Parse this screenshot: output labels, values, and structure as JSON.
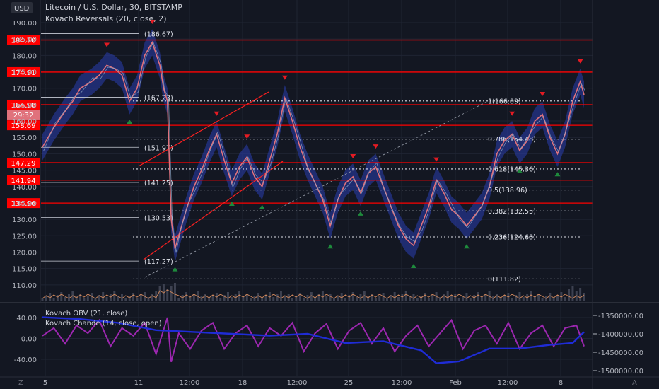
{
  "header": {
    "currency": "USD",
    "title": "Litecoin / U.S. Dollar, 30, BITSTAMP",
    "indicator": "Kovach Reversals (20, close, 2)"
  },
  "lower_pane": {
    "label1": "Kovach OBV (21, close)",
    "label2": "Kovach Chande (14, close, open)"
  },
  "footer": {
    "left_icon": "Z",
    "right_icon": "A"
  },
  "colors": {
    "background": "#131722",
    "grid": "#1f2433",
    "axis_text": "#b2b5be",
    "level_red": "#ff0000",
    "price_line": "#e0727c",
    "band": "#2a3eb1",
    "marker_up": "#1e8a3c",
    "marker_down": "#e31b23",
    "obv": "#1f2cd6",
    "chande": "#9c27b0",
    "volume": "#c9845b"
  },
  "chart_data": [
    {
      "type": "line",
      "pane": "price",
      "ylim": [
        105,
        192
      ],
      "y_ticks": [
        110,
        115,
        120,
        125,
        130,
        135,
        140,
        145,
        150,
        155,
        160,
        165,
        170,
        175,
        180,
        185,
        190
      ],
      "x_ticks": [
        "5",
        "11",
        "12:00",
        "18",
        "12:00",
        "25",
        "12:00",
        "Feb",
        "12:00",
        "8"
      ],
      "red_levels": [
        {
          "value": 184.7,
          "label": "184.70"
        },
        {
          "value": 174.91,
          "label": "174.91"
        },
        {
          "value": 164.98,
          "label": "164.98"
        },
        {
          "value": 158.69,
          "label": "158.69"
        },
        {
          "value": 147.29,
          "label": "147.29"
        },
        {
          "value": 141.94,
          "label": "141.94"
        },
        {
          "value": 134.96,
          "label": "134.96"
        }
      ],
      "countdown": "29:32",
      "swing_labels": [
        {
          "value": 186.67,
          "label": "(186.67)"
        },
        {
          "value": 167.23,
          "label": "(167.23)"
        },
        {
          "value": 151.97,
          "label": "(151.97)"
        },
        {
          "value": 141.25,
          "label": "(141.25)"
        },
        {
          "value": 130.53,
          "label": "(130.53)"
        },
        {
          "value": 117.27,
          "label": "(117.27)"
        }
      ],
      "fib_levels": [
        {
          "value": 166.09,
          "label": "1(166.09)"
        },
        {
          "value": 154.48,
          "label": "0.786(154.48)"
        },
        {
          "value": 145.36,
          "label": "0.618(145.36)"
        },
        {
          "value": 138.96,
          "label": "0.5(138.96)"
        },
        {
          "value": 132.55,
          "label": "0.382(132.55)"
        },
        {
          "value": 124.63,
          "label": "0.236(124.63)"
        },
        {
          "value": 111.82,
          "label": "0(111.82)"
        }
      ],
      "price_path": [
        [
          0,
          152
        ],
        [
          3,
          158
        ],
        [
          6,
          163
        ],
        [
          8,
          166
        ],
        [
          10,
          170
        ],
        [
          13,
          172
        ],
        [
          15,
          174
        ],
        [
          17,
          177
        ],
        [
          19,
          176
        ],
        [
          21,
          174
        ],
        [
          23,
          166
        ],
        [
          25,
          170
        ],
        [
          27,
          180
        ],
        [
          29,
          184
        ],
        [
          31,
          177
        ],
        [
          32,
          170
        ],
        [
          33,
          166
        ],
        [
          34,
          130
        ],
        [
          35,
          121
        ],
        [
          36,
          125
        ],
        [
          38,
          133
        ],
        [
          40,
          140
        ],
        [
          42,
          145
        ],
        [
          44,
          151
        ],
        [
          46,
          156
        ],
        [
          48,
          148
        ],
        [
          50,
          141
        ],
        [
          52,
          146
        ],
        [
          54,
          149
        ],
        [
          56,
          143
        ],
        [
          58,
          140
        ],
        [
          60,
          148
        ],
        [
          62,
          156
        ],
        [
          64,
          167
        ],
        [
          66,
          160
        ],
        [
          68,
          152
        ],
        [
          70,
          146
        ],
        [
          72,
          141
        ],
        [
          74,
          136
        ],
        [
          76,
          128
        ],
        [
          78,
          136
        ],
        [
          80,
          141
        ],
        [
          82,
          143
        ],
        [
          84,
          138
        ],
        [
          86,
          144
        ],
        [
          88,
          146
        ],
        [
          90,
          140
        ],
        [
          92,
          134
        ],
        [
          94,
          128
        ],
        [
          96,
          124
        ],
        [
          98,
          122
        ],
        [
          100,
          128
        ],
        [
          102,
          134
        ],
        [
          104,
          142
        ],
        [
          106,
          138
        ],
        [
          108,
          133
        ],
        [
          110,
          131
        ],
        [
          112,
          128
        ],
        [
          114,
          131
        ],
        [
          116,
          134
        ],
        [
          118,
          140
        ],
        [
          120,
          150
        ],
        [
          122,
          154
        ],
        [
          124,
          156
        ],
        [
          126,
          151
        ],
        [
          128,
          154
        ],
        [
          130,
          160
        ],
        [
          132,
          162
        ],
        [
          134,
          155
        ],
        [
          136,
          150
        ],
        [
          138,
          156
        ],
        [
          140,
          166
        ],
        [
          142,
          172
        ],
        [
          143,
          168
        ]
      ]
    },
    {
      "type": "line",
      "pane": "oscillator",
      "ylim": [
        -50,
        50
      ],
      "y_ticks": [
        40,
        0,
        -40
      ],
      "series": [
        {
          "name": "Kovach OBV (21, close)",
          "unit_axis": "right",
          "ylim": [
            -1500000,
            -1350000
          ],
          "right_ticks": [
            -1350000,
            -1400000,
            -1450000,
            -1500000
          ],
          "right_tick_labels": [
            "-1350000.00",
            "-1400000.00",
            "-1450000.00",
            "-1500000.00"
          ],
          "values": [
            [
              0,
              -1355000
            ],
            [
              10,
              -1360000
            ],
            [
              20,
              -1370000
            ],
            [
              30,
              -1390000
            ],
            [
              40,
              -1395000
            ],
            [
              50,
              -1400000
            ],
            [
              60,
              -1405000
            ],
            [
              70,
              -1400000
            ],
            [
              80,
              -1425000
            ],
            [
              90,
              -1420000
            ],
            [
              100,
              -1445000
            ],
            [
              104,
              -1480000
            ],
            [
              110,
              -1475000
            ],
            [
              118,
              -1440000
            ],
            [
              126,
              -1440000
            ],
            [
              134,
              -1430000
            ],
            [
              140,
              -1425000
            ],
            [
              143,
              -1395000
            ]
          ]
        },
        {
          "name": "Kovach Chande (14, close, open)",
          "unit_axis": "left",
          "values": [
            [
              0,
              5
            ],
            [
              3,
              20
            ],
            [
              6,
              -10
            ],
            [
              9,
              25
            ],
            [
              12,
              10
            ],
            [
              15,
              35
            ],
            [
              18,
              -15
            ],
            [
              21,
              20
            ],
            [
              24,
              5
            ],
            [
              27,
              30
            ],
            [
              30,
              -30
            ],
            [
              33,
              40
            ],
            [
              34,
              -45
            ],
            [
              36,
              10
            ],
            [
              39,
              -20
            ],
            [
              42,
              15
            ],
            [
              45,
              30
            ],
            [
              48,
              -20
            ],
            [
              51,
              10
            ],
            [
              54,
              25
            ],
            [
              57,
              -15
            ],
            [
              60,
              20
            ],
            [
              63,
              5
            ],
            [
              66,
              30
            ],
            [
              69,
              -25
            ],
            [
              72,
              10
            ],
            [
              75,
              28
            ],
            [
              78,
              -20
            ],
            [
              81,
              15
            ],
            [
              84,
              30
            ],
            [
              87,
              -10
            ],
            [
              90,
              20
            ],
            [
              93,
              -25
            ],
            [
              96,
              5
            ],
            [
              99,
              25
            ],
            [
              102,
              -15
            ],
            [
              105,
              10
            ],
            [
              108,
              35
            ],
            [
              111,
              -20
            ],
            [
              114,
              15
            ],
            [
              117,
              25
            ],
            [
              120,
              -10
            ],
            [
              123,
              30
            ],
            [
              126,
              -20
            ],
            [
              129,
              10
            ],
            [
              132,
              25
            ],
            [
              135,
              -15
            ],
            [
              138,
              20
            ],
            [
              141,
              25
            ],
            [
              143,
              -15
            ]
          ]
        }
      ]
    }
  ]
}
